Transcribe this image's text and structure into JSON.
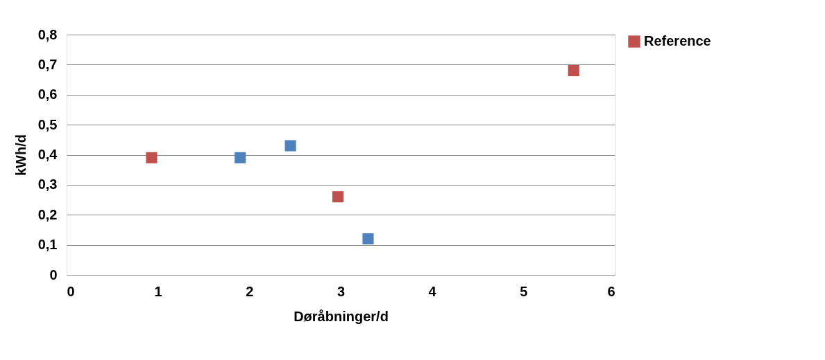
{
  "chart_data": {
    "type": "scatter",
    "xlabel": "Døråbninger/d",
    "ylabel": "kWh/d",
    "xlim": [
      0,
      6
    ],
    "xticks": [
      0,
      1,
      2,
      3,
      4,
      5,
      6
    ],
    "ylim": [
      0,
      0.8
    ],
    "yticks": [
      0,
      {
        "value": 0.1,
        "label": "0,1"
      },
      {
        "value": 0.2,
        "label": "0,2"
      },
      {
        "value": 0.3,
        "label": "0,3"
      },
      {
        "value": 0.4,
        "label": "0,4"
      },
      {
        "value": 0.5,
        "label": "0,5"
      },
      {
        "value": 0.6,
        "label": "0,6"
      },
      {
        "value": 0.7,
        "label": "0,7"
      },
      {
        "value": 0.8,
        "label": "0,8"
      }
    ],
    "series": [
      {
        "color": "#4f81bd",
        "x": [
          1.9,
          2.45,
          3.3
        ],
        "values": [
          0.39,
          0.43,
          0.12
        ]
      },
      {
        "name": "Reference",
        "color": "#c0504d",
        "x": [
          0.93,
          2.97,
          5.55
        ],
        "values": [
          0.39,
          0.26,
          0.68
        ]
      }
    ],
    "marker": "square",
    "grid": "y",
    "legend": "right"
  }
}
